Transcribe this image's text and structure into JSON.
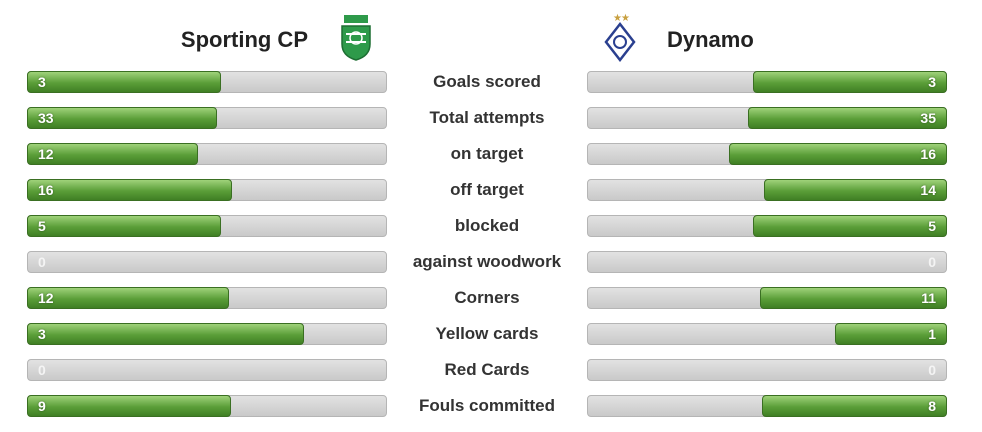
{
  "home": {
    "name": "Sporting CP"
  },
  "away": {
    "name": "Dynamo"
  },
  "stats": [
    {
      "label": "Goals scored",
      "home": 3,
      "away": 3
    },
    {
      "label": "Total attempts",
      "home": 33,
      "away": 35
    },
    {
      "label": "on target",
      "home": 12,
      "away": 16
    },
    {
      "label": "off target",
      "home": 16,
      "away": 14
    },
    {
      "label": "blocked",
      "home": 5,
      "away": 5
    },
    {
      "label": "against woodwork",
      "home": 0,
      "away": 0
    },
    {
      "label": "Corners",
      "home": 12,
      "away": 11
    },
    {
      "label": "Yellow cards",
      "home": 3,
      "away": 1
    },
    {
      "label": "Red Cards",
      "home": 0,
      "away": 0
    },
    {
      "label": "Fouls committed",
      "home": 9,
      "away": 8
    }
  ]
}
